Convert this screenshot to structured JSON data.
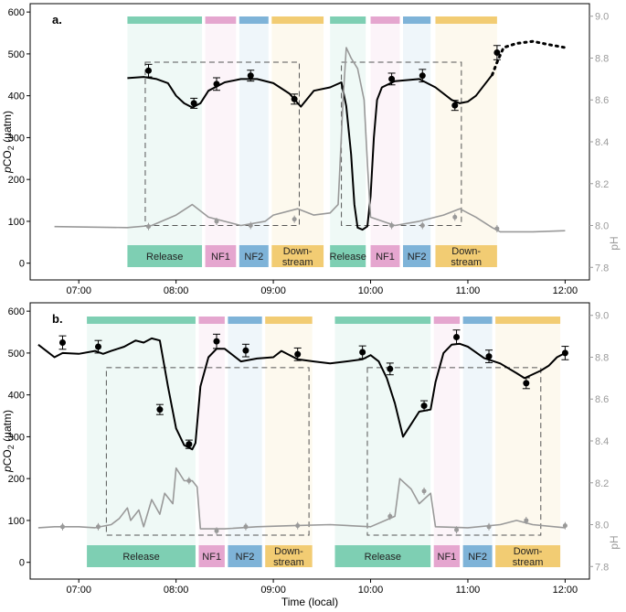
{
  "figure": {
    "xlabel": "Time (local)"
  },
  "colors": {
    "release": "#7ecfb3",
    "nf1": "#e5a6cf",
    "nf2": "#7eb3d8",
    "downstream": "#f2cc73",
    "pco2": "#000000",
    "ph": "#999999",
    "axis_right": "#9a9a9a"
  },
  "chart_data": [
    {
      "panel": "a.",
      "type": "line",
      "xlabel": "",
      "ylabel_left": "pCO2 (µatm)",
      "ylabel_right": "pH",
      "xlim": [
        "06:30",
        "12:15"
      ],
      "xticks": [
        "07:00",
        "08:00",
        "09:00",
        "10:00",
        "11:00",
        "12:00"
      ],
      "ylim_left": [
        -40,
        620
      ],
      "yticks_left": [
        0,
        100,
        200,
        300,
        400,
        500,
        600
      ],
      "ylim_right": [
        7.74,
        9.06
      ],
      "yticks_right": [
        "7.8",
        "8.0",
        "8.2",
        "8.4",
        "8.6",
        "8.8",
        "9.0"
      ],
      "zones": [
        {
          "label": "Release",
          "start": "07:30",
          "end": "08:16",
          "color": "release"
        },
        {
          "label": "NF1",
          "start": "08:18",
          "end": "08:37",
          "color": "nf1"
        },
        {
          "label": "NF2",
          "start": "08:39",
          "end": "08:57",
          "color": "nf2"
        },
        {
          "label": "Down-stream",
          "start": "08:59",
          "end": "09:31",
          "color": "downstream"
        },
        {
          "label": "Release",
          "start": "09:35",
          "end": "09:57",
          "color": "release"
        },
        {
          "label": "NF1",
          "start": "10:00",
          "end": "10:18",
          "color": "nf1"
        },
        {
          "label": "NF2",
          "start": "10:20",
          "end": "10:37",
          "color": "nf2"
        },
        {
          "label": "Down-stream",
          "start": "10:40",
          "end": "11:18",
          "color": "downstream"
        }
      ],
      "dashed_boxes": [
        {
          "start": "07:41",
          "end": "09:16",
          "ymin": 8.0,
          "ymax": 8.78
        },
        {
          "start": "09:42",
          "end": "10:56",
          "ymin": 8.0,
          "ymax": 8.78
        }
      ],
      "series": [
        {
          "name": "pCO2",
          "axis": "left",
          "style": "solid",
          "points": [
            [
              "07:30",
              442
            ],
            [
              "07:40",
              445
            ],
            [
              "07:48",
              440
            ],
            [
              "07:55",
              430
            ],
            [
              "08:00",
              400
            ],
            [
              "08:05",
              382
            ],
            [
              "08:10",
              372
            ],
            [
              "08:15",
              382
            ],
            [
              "08:20",
              412
            ],
            [
              "08:30",
              432
            ],
            [
              "08:40",
              440
            ],
            [
              "08:50",
              440
            ],
            [
              "09:00",
              430
            ],
            [
              "09:10",
              405
            ],
            [
              "09:17",
              374
            ],
            [
              "09:25",
              412
            ],
            [
              "09:35",
              420
            ],
            [
              "09:42",
              432
            ],
            [
              "09:45",
              375
            ],
            [
              "09:48",
              260
            ],
            [
              "09:50",
              140
            ],
            [
              "09:52",
              85
            ],
            [
              "09:55",
              80
            ],
            [
              "09:58",
              88
            ],
            [
              "10:00",
              160
            ],
            [
              "10:02",
              300
            ],
            [
              "10:04",
              390
            ],
            [
              "10:07",
              420
            ],
            [
              "10:15",
              435
            ],
            [
              "10:30",
              440
            ],
            [
              "10:40",
              420
            ],
            [
              "10:50",
              390
            ],
            [
              "10:55",
              382
            ],
            [
              "11:00",
              386
            ],
            [
              "11:05",
              400
            ],
            [
              "11:10",
              425
            ],
            [
              "11:15",
              450
            ]
          ]
        },
        {
          "name": "pCO2 extrapolated",
          "axis": "left",
          "style": "dotted",
          "points": [
            [
              "11:15",
              450
            ],
            [
              "11:18",
              480
            ],
            [
              "11:22",
              515
            ],
            [
              "11:30",
              525
            ],
            [
              "11:40",
              530
            ],
            [
              "11:50",
              522
            ],
            [
              "12:00",
              515
            ]
          ]
        },
        {
          "name": "pH",
          "axis": "right",
          "style": "solid",
          "points": [
            [
              "06:45",
              7.995
            ],
            [
              "07:30",
              7.99
            ],
            [
              "07:45",
              8.0
            ],
            [
              "08:00",
              8.05
            ],
            [
              "08:10",
              8.1
            ],
            [
              "08:20",
              8.04
            ],
            [
              "08:40",
              8.0
            ],
            [
              "08:55",
              8.02
            ],
            [
              "09:00",
              8.05
            ],
            [
              "09:15",
              8.08
            ],
            [
              "09:25",
              8.05
            ],
            [
              "09:35",
              8.06
            ],
            [
              "09:40",
              8.1
            ],
            [
              "09:43",
              8.6
            ],
            [
              "09:45",
              8.85
            ],
            [
              "09:48",
              8.8
            ],
            [
              "09:52",
              8.75
            ],
            [
              "09:56",
              8.6
            ],
            [
              "09:58",
              8.3
            ],
            [
              "10:00",
              8.04
            ],
            [
              "10:15",
              8.0
            ],
            [
              "10:30",
              8.02
            ],
            [
              "10:45",
              8.05
            ],
            [
              "10:55",
              8.08
            ],
            [
              "11:05",
              8.04
            ],
            [
              "11:15",
              7.99
            ],
            [
              "11:20",
              7.97
            ],
            [
              "11:40",
              7.97
            ],
            [
              "12:00",
              7.975
            ]
          ]
        }
      ],
      "pco2_samples": [
        {
          "t": "07:43",
          "v": 460,
          "err": 15
        },
        {
          "t": "08:11",
          "v": 382,
          "err": 12
        },
        {
          "t": "08:25",
          "v": 428,
          "err": 15
        },
        {
          "t": "08:46",
          "v": 448,
          "err": 13
        },
        {
          "t": "09:13",
          "v": 392,
          "err": 12
        },
        {
          "t": "10:13",
          "v": 440,
          "err": 14
        },
        {
          "t": "10:32",
          "v": 448,
          "err": 15
        },
        {
          "t": "10:52",
          "v": 377,
          "err": 12
        },
        {
          "t": "11:18",
          "v": 503,
          "err": 17
        }
      ],
      "ph_samples": [
        {
          "t": "07:43",
          "v": 7.995
        },
        {
          "t": "08:25",
          "v": 8.02
        },
        {
          "t": "08:46",
          "v": 8.0
        },
        {
          "t": "09:13",
          "v": 8.03
        },
        {
          "t": "10:13",
          "v": 8.0
        },
        {
          "t": "10:32",
          "v": 8.0
        },
        {
          "t": "10:52",
          "v": 8.04
        },
        {
          "t": "11:18",
          "v": 7.985
        }
      ]
    },
    {
      "panel": "b.",
      "type": "line",
      "xlabel": "Time (local)",
      "ylabel_left": "pCO2 (µatm)",
      "ylabel_right": "pH",
      "xlim": [
        "06:30",
        "12:15"
      ],
      "xticks": [
        "07:00",
        "08:00",
        "09:00",
        "10:00",
        "11:00",
        "12:00"
      ],
      "ylim_left": [
        -40,
        620
      ],
      "yticks_left": [
        0,
        100,
        200,
        300,
        400,
        500,
        600
      ],
      "ylim_right": [
        7.74,
        9.06
      ],
      "yticks_right": [
        "7.8",
        "8.0",
        "8.2",
        "8.4",
        "8.6",
        "8.8",
        "9.0"
      ],
      "zones": [
        {
          "label": "Release",
          "start": "07:05",
          "end": "08:12",
          "color": "release"
        },
        {
          "label": "NF1",
          "start": "08:14",
          "end": "08:30",
          "color": "nf1"
        },
        {
          "label": "NF2",
          "start": "08:32",
          "end": "08:53",
          "color": "nf2"
        },
        {
          "label": "Down-stream",
          "start": "08:55",
          "end": "09:24",
          "color": "downstream"
        },
        {
          "label": "Release",
          "start": "09:38",
          "end": "10:37",
          "color": "release"
        },
        {
          "label": "NF1",
          "start": "10:39",
          "end": "10:55",
          "color": "nf1"
        },
        {
          "label": "NF2",
          "start": "10:57",
          "end": "11:15",
          "color": "nf2"
        },
        {
          "label": "Down-stream",
          "start": "11:17",
          "end": "11:57",
          "color": "downstream"
        }
      ],
      "dashed_boxes": [
        {
          "start": "07:17",
          "end": "09:22",
          "ymin": 7.95,
          "ymax": 8.75
        },
        {
          "start": "09:58",
          "end": "11:45",
          "ymin": 7.95,
          "ymax": 8.75
        }
      ],
      "series": [
        {
          "name": "pCO2",
          "axis": "left",
          "style": "solid",
          "points": [
            [
              "06:35",
              520
            ],
            [
              "06:40",
              505
            ],
            [
              "06:45",
              490
            ],
            [
              "06:50",
              500
            ],
            [
              "07:00",
              498
            ],
            [
              "07:10",
              505
            ],
            [
              "07:15",
              498
            ],
            [
              "07:20",
              505
            ],
            [
              "07:28",
              515
            ],
            [
              "07:35",
              530
            ],
            [
              "07:40",
              525
            ],
            [
              "07:45",
              535
            ],
            [
              "07:50",
              530
            ],
            [
              "07:55",
              420
            ],
            [
              "08:00",
              320
            ],
            [
              "08:05",
              280
            ],
            [
              "08:10",
              270
            ],
            [
              "08:12",
              285
            ],
            [
              "08:15",
              420
            ],
            [
              "08:20",
              490
            ],
            [
              "08:25",
              510
            ],
            [
              "08:30",
              510
            ],
            [
              "08:40",
              480
            ],
            [
              "08:50",
              487
            ],
            [
              "09:00",
              490
            ],
            [
              "09:05",
              505
            ],
            [
              "09:15",
              485
            ],
            [
              "09:25",
              480
            ],
            [
              "09:35",
              475
            ],
            [
              "09:45",
              480
            ],
            [
              "09:55",
              485
            ],
            [
              "10:00",
              495
            ],
            [
              "10:05",
              480
            ],
            [
              "10:10",
              440
            ],
            [
              "10:15",
              380
            ],
            [
              "10:20",
              300
            ],
            [
              "10:25",
              330
            ],
            [
              "10:30",
              360
            ],
            [
              "10:37",
              365
            ],
            [
              "10:40",
              430
            ],
            [
              "10:45",
              500
            ],
            [
              "10:50",
              520
            ],
            [
              "10:55",
              522
            ],
            [
              "11:00",
              515
            ],
            [
              "11:10",
              488
            ],
            [
              "11:20",
              475
            ],
            [
              "11:30",
              452
            ],
            [
              "11:35",
              440
            ],
            [
              "11:45",
              458
            ],
            [
              "11:50",
              470
            ],
            [
              "11:55",
              490
            ],
            [
              "12:00",
              500
            ]
          ]
        },
        {
          "name": "pH",
          "axis": "right",
          "style": "solid",
          "points": [
            [
              "06:35",
              7.985
            ],
            [
              "06:45",
              7.99
            ],
            [
              "07:00",
              7.99
            ],
            [
              "07:10",
              7.985
            ],
            [
              "07:20",
              8.0
            ],
            [
              "07:25",
              8.03
            ],
            [
              "07:30",
              8.08
            ],
            [
              "07:32",
              8.02
            ],
            [
              "07:37",
              8.07
            ],
            [
              "07:40",
              7.99
            ],
            [
              "07:45",
              8.12
            ],
            [
              "07:50",
              8.05
            ],
            [
              "07:53",
              8.15
            ],
            [
              "07:58",
              8.1
            ],
            [
              "08:00",
              8.27
            ],
            [
              "08:05",
              8.21
            ],
            [
              "08:10",
              8.21
            ],
            [
              "08:13",
              8.18
            ],
            [
              "08:15",
              7.98
            ],
            [
              "08:30",
              7.98
            ],
            [
              "08:50",
              7.99
            ],
            [
              "09:10",
              7.995
            ],
            [
              "09:35",
              8.0
            ],
            [
              "10:00",
              7.99
            ],
            [
              "10:15",
              8.04
            ],
            [
              "10:18",
              8.22
            ],
            [
              "10:25",
              8.17
            ],
            [
              "10:30",
              8.1
            ],
            [
              "10:37",
              8.15
            ],
            [
              "10:40",
              7.99
            ],
            [
              "11:00",
              7.985
            ],
            [
              "11:20",
              8.0
            ],
            [
              "11:30",
              8.02
            ],
            [
              "11:40",
              8.0
            ],
            [
              "12:00",
              7.985
            ]
          ]
        }
      ],
      "pco2_samples": [
        {
          "t": "06:50",
          "v": 525,
          "err": 16
        },
        {
          "t": "07:12",
          "v": 515,
          "err": 15
        },
        {
          "t": "07:50",
          "v": 365,
          "err": 12
        },
        {
          "t": "08:08",
          "v": 282,
          "err": 10
        },
        {
          "t": "08:25",
          "v": 528,
          "err": 17
        },
        {
          "t": "08:43",
          "v": 506,
          "err": 15
        },
        {
          "t": "09:15",
          "v": 497,
          "err": 15
        },
        {
          "t": "09:55",
          "v": 502,
          "err": 15
        },
        {
          "t": "10:12",
          "v": 462,
          "err": 14
        },
        {
          "t": "10:33",
          "v": 374,
          "err": 12
        },
        {
          "t": "10:53",
          "v": 538,
          "err": 17
        },
        {
          "t": "11:13",
          "v": 492,
          "err": 15
        },
        {
          "t": "11:36",
          "v": 428,
          "err": 13
        },
        {
          "t": "12:00",
          "v": 500,
          "err": 16
        }
      ],
      "ph_samples": [
        {
          "t": "06:50",
          "v": 7.99
        },
        {
          "t": "07:12",
          "v": 7.99
        },
        {
          "t": "08:08",
          "v": 8.21
        },
        {
          "t": "08:25",
          "v": 7.97
        },
        {
          "t": "08:43",
          "v": 7.99
        },
        {
          "t": "09:15",
          "v": 7.995
        },
        {
          "t": "10:12",
          "v": 8.04
        },
        {
          "t": "10:33",
          "v": 8.16
        },
        {
          "t": "10:53",
          "v": 7.975
        },
        {
          "t": "11:13",
          "v": 7.99
        },
        {
          "t": "11:36",
          "v": 8.02
        },
        {
          "t": "12:00",
          "v": 7.995
        }
      ]
    }
  ]
}
